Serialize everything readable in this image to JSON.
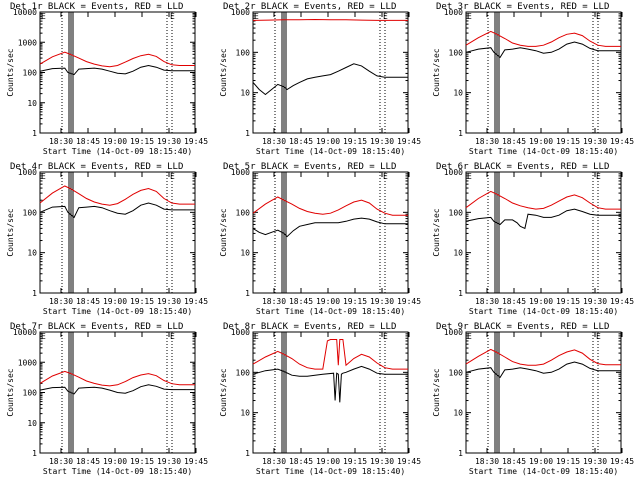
{
  "figure": {
    "background": "#ffffff",
    "black_color": "#000000",
    "red_color": "#e00000"
  },
  "chart_data": [
    {
      "type": "line",
      "title": "Det 1r BLACK = Events, RED = LLD",
      "xlabel": "Start Time (14-Oct-09 18:15:40)",
      "ylabel": "Counts/sec",
      "yscale": "log",
      "ylim": [
        1,
        10000
      ],
      "ytick_labels": [
        "10000",
        "1000",
        "100",
        "10",
        "1"
      ],
      "xtick_labels": [
        "18:30",
        "18:45",
        "19:00",
        "19:15",
        "19:30",
        "19:45"
      ],
      "xlim": [
        0,
        100
      ],
      "annotation": "E",
      "series": [
        {
          "name": "Events",
          "color": "black",
          "x": [
            0,
            8,
            16,
            18,
            22,
            25,
            30,
            35,
            40,
            45,
            50,
            55,
            60,
            65,
            70,
            75,
            80,
            85,
            90,
            95,
            100
          ],
          "y": [
            110,
            135,
            140,
            100,
            85,
            130,
            135,
            140,
            130,
            110,
            95,
            90,
            110,
            150,
            170,
            150,
            120,
            115,
            115,
            115,
            115
          ]
        },
        {
          "name": "LLD",
          "color": "red",
          "x": [
            0,
            8,
            16,
            20,
            25,
            30,
            35,
            40,
            45,
            50,
            55,
            60,
            65,
            70,
            75,
            80,
            85,
            90,
            95,
            100
          ],
          "y": [
            190,
            330,
            470,
            390,
            300,
            230,
            190,
            165,
            155,
            170,
            220,
            290,
            360,
            400,
            340,
            230,
            180,
            170,
            170,
            170
          ]
        }
      ]
    },
    {
      "type": "line",
      "title": "Det 2r BLACK = Events, RED = LLD",
      "xlabel": "Start Time (14-Oct-09 18:15:40)",
      "ylabel": "Counts/sec",
      "yscale": "log",
      "ylim": [
        1,
        1000
      ],
      "ytick_labels": [
        "1000",
        "100",
        "10",
        "1"
      ],
      "xtick_labels": [
        "18:30",
        "18:45",
        "19:00",
        "19:15",
        "19:30",
        "19:45"
      ],
      "xlim": [
        0,
        100
      ],
      "annotation": "E",
      "series": [
        {
          "name": "Events",
          "color": "black",
          "x": [
            0,
            4,
            8,
            12,
            16,
            20,
            22,
            26,
            30,
            35,
            40,
            45,
            50,
            55,
            60,
            65,
            70,
            75,
            80,
            85,
            90,
            95,
            100
          ],
          "y": [
            18,
            12,
            9,
            12,
            16,
            14,
            12,
            15,
            18,
            22,
            24,
            26,
            28,
            34,
            42,
            52,
            46,
            34,
            26,
            24,
            24,
            24,
            24
          ]
        },
        {
          "name": "LLD",
          "color": "red",
          "x": [
            0,
            10,
            20,
            30,
            40,
            50,
            60,
            70,
            80,
            90,
            100
          ],
          "y": [
            620,
            630,
            640,
            640,
            650,
            640,
            640,
            630,
            620,
            620,
            620
          ]
        }
      ]
    },
    {
      "type": "line",
      "title": "Det 3r BLACK = Events, RED = LLD",
      "xlabel": "Start Time (14-Oct-09 18:15:40)",
      "ylabel": "Counts/sec",
      "yscale": "log",
      "ylim": [
        1,
        1000
      ],
      "ytick_labels": [
        "1000",
        "100",
        "10",
        "1"
      ],
      "xtick_labels": [
        "18:30",
        "18:45",
        "19:00",
        "19:15",
        "19:30",
        "19:45"
      ],
      "xlim": [
        0,
        100
      ],
      "annotation": "E",
      "series": [
        {
          "name": "Events",
          "color": "black",
          "x": [
            0,
            8,
            16,
            18,
            22,
            25,
            30,
            35,
            40,
            45,
            50,
            55,
            60,
            65,
            70,
            75,
            80,
            85,
            90,
            95,
            100
          ],
          "y": [
            100,
            120,
            130,
            100,
            75,
            115,
            120,
            130,
            120,
            110,
            95,
            100,
            120,
            160,
            180,
            160,
            125,
            110,
            110,
            110,
            110
          ]
        },
        {
          "name": "LLD",
          "color": "red",
          "x": [
            0,
            8,
            16,
            20,
            25,
            30,
            35,
            40,
            45,
            50,
            55,
            60,
            65,
            70,
            75,
            80,
            85,
            90,
            95,
            100
          ],
          "y": [
            150,
            230,
            330,
            280,
            220,
            170,
            150,
            140,
            140,
            150,
            180,
            230,
            280,
            300,
            260,
            190,
            150,
            140,
            140,
            140
          ]
        }
      ]
    },
    {
      "type": "line",
      "title": "Det 4r BLACK = Events, RED = LLD",
      "xlabel": "Start Time (14-Oct-09 18:15:40)",
      "ylabel": "Counts/sec",
      "yscale": "log",
      "ylim": [
        1,
        1000
      ],
      "ytick_labels": [
        "1000",
        "100",
        "10",
        "1"
      ],
      "xtick_labels": [
        "18:30",
        "18:45",
        "19:00",
        "19:15",
        "19:30",
        "19:45"
      ],
      "xlim": [
        0,
        100
      ],
      "annotation": "E",
      "series": [
        {
          "name": "Events",
          "color": "black",
          "x": [
            0,
            8,
            16,
            18,
            22,
            25,
            30,
            35,
            40,
            45,
            50,
            55,
            60,
            65,
            70,
            75,
            80,
            85,
            90,
            95,
            100
          ],
          "y": [
            100,
            135,
            140,
            100,
            75,
            130,
            135,
            140,
            130,
            110,
            95,
            90,
            110,
            150,
            170,
            150,
            120,
            115,
            115,
            115,
            115
          ]
        },
        {
          "name": "LLD",
          "color": "red",
          "x": [
            0,
            8,
            16,
            20,
            25,
            30,
            35,
            40,
            45,
            50,
            55,
            60,
            65,
            70,
            75,
            80,
            85,
            90,
            95,
            100
          ],
          "y": [
            170,
            300,
            450,
            380,
            290,
            220,
            180,
            160,
            150,
            165,
            210,
            280,
            350,
            390,
            330,
            220,
            170,
            160,
            160,
            160
          ]
        }
      ]
    },
    {
      "type": "line",
      "title": "Det 5r BLACK = Events, RED = LLD",
      "xlabel": "Start Time (14-Oct-09 18:15:40)",
      "ylabel": "Counts/sec",
      "yscale": "log",
      "ylim": [
        1,
        1000
      ],
      "ytick_labels": [
        "1000",
        "100",
        "10",
        "1"
      ],
      "xtick_labels": [
        "18:30",
        "18:45",
        "19:00",
        "19:15",
        "19:30",
        "19:45"
      ],
      "xlim": [
        0,
        100
      ],
      "annotation": "E",
      "series": [
        {
          "name": "Events",
          "color": "black",
          "x": [
            0,
            4,
            8,
            12,
            16,
            20,
            22,
            26,
            30,
            35,
            40,
            45,
            50,
            55,
            60,
            65,
            70,
            75,
            80,
            85,
            90,
            95,
            100
          ],
          "y": [
            40,
            32,
            28,
            32,
            36,
            30,
            25,
            35,
            45,
            50,
            55,
            55,
            55,
            55,
            60,
            68,
            72,
            68,
            58,
            52,
            52,
            52,
            52
          ]
        },
        {
          "name": "LLD",
          "color": "red",
          "x": [
            0,
            8,
            16,
            20,
            25,
            30,
            35,
            40,
            45,
            50,
            55,
            60,
            65,
            70,
            75,
            80,
            85,
            90,
            95,
            100
          ],
          "y": [
            95,
            160,
            240,
            200,
            160,
            125,
            105,
            95,
            90,
            95,
            115,
            145,
            180,
            200,
            170,
            120,
            95,
            85,
            85,
            85
          ]
        }
      ]
    },
    {
      "type": "line",
      "title": "Det 6r BLACK = Events, RED = LLD",
      "xlabel": "Start Time (14-Oct-09 18:15:40)",
      "ylabel": "Counts/sec",
      "yscale": "log",
      "ylim": [
        1,
        1000
      ],
      "ytick_labels": [
        "1000",
        "100",
        "10",
        "1"
      ],
      "xtick_labels": [
        "18:30",
        "18:45",
        "19:00",
        "19:15",
        "19:30",
        "19:45"
      ],
      "xlim": [
        0,
        100
      ],
      "annotation": "E",
      "series": [
        {
          "name": "Events",
          "color": "black",
          "x": [
            0,
            8,
            16,
            18,
            22,
            25,
            30,
            33,
            35,
            38,
            40,
            45,
            50,
            55,
            60,
            65,
            70,
            75,
            80,
            85,
            90,
            95,
            100
          ],
          "y": [
            60,
            70,
            75,
            60,
            50,
            65,
            65,
            55,
            45,
            40,
            90,
            85,
            75,
            75,
            85,
            110,
            120,
            105,
            90,
            85,
            85,
            85,
            85
          ]
        },
        {
          "name": "LLD",
          "color": "red",
          "x": [
            0,
            8,
            16,
            20,
            25,
            30,
            35,
            40,
            45,
            50,
            55,
            60,
            65,
            70,
            75,
            80,
            85,
            90,
            95,
            100
          ],
          "y": [
            130,
            220,
            330,
            280,
            220,
            170,
            145,
            130,
            120,
            125,
            150,
            190,
            240,
            270,
            230,
            170,
            130,
            120,
            120,
            120
          ]
        }
      ]
    },
    {
      "type": "line",
      "title": "Det 7r BLACK = Events, RED = LLD",
      "xlabel": "Start Time (14-Oct-09 18:15:40)",
      "ylabel": "Counts/sec",
      "yscale": "log",
      "ylim": [
        1,
        10000
      ],
      "ytick_labels": [
        "10000",
        "1000",
        "100",
        "10",
        "1"
      ],
      "xtick_labels": [
        "18:30",
        "18:45",
        "19:00",
        "19:15",
        "19:30",
        "19:45"
      ],
      "xlim": [
        0,
        100
      ],
      "annotation": "E",
      "series": [
        {
          "name": "Events",
          "color": "black",
          "x": [
            0,
            8,
            16,
            18,
            22,
            25,
            30,
            35,
            40,
            45,
            50,
            55,
            60,
            65,
            70,
            75,
            80,
            85,
            90,
            95,
            100
          ],
          "y": [
            120,
            145,
            150,
            110,
            90,
            140,
            145,
            150,
            140,
            120,
            100,
            95,
            115,
            155,
            180,
            160,
            130,
            125,
            125,
            125,
            125
          ]
        },
        {
          "name": "LLD",
          "color": "red",
          "x": [
            0,
            8,
            16,
            20,
            25,
            30,
            35,
            40,
            45,
            50,
            55,
            60,
            65,
            70,
            75,
            80,
            85,
            90,
            95,
            100
          ],
          "y": [
            200,
            350,
            500,
            420,
            320,
            240,
            200,
            175,
            165,
            180,
            230,
            310,
            380,
            420,
            360,
            250,
            195,
            180,
            180,
            180
          ]
        }
      ]
    },
    {
      "type": "line",
      "title": "Det 8r BLACK = Events, RED = LLD",
      "xlabel": "Start Time (14-Oct-09 18:15:40)",
      "ylabel": "Counts/sec",
      "yscale": "log",
      "ylim": [
        1,
        1000
      ],
      "ytick_labels": [
        "1000",
        "100",
        "10",
        "1"
      ],
      "xtick_labels": [
        "18:30",
        "18:45",
        "19:00",
        "19:15",
        "19:30",
        "19:45"
      ],
      "xlim": [
        0,
        100
      ],
      "annotation": "E",
      "series": [
        {
          "name": "Events",
          "color": "black",
          "x": [
            0,
            8,
            16,
            20,
            25,
            30,
            35,
            40,
            45,
            52,
            53,
            54,
            55,
            56,
            57,
            58,
            60,
            65,
            70,
            75,
            80,
            85,
            90,
            95,
            100
          ],
          "y": [
            90,
            110,
            120,
            105,
            85,
            80,
            80,
            85,
            90,
            95,
            20,
            95,
            90,
            18,
            90,
            95,
            100,
            120,
            140,
            120,
            95,
            90,
            90,
            90,
            90
          ]
        },
        {
          "name": "LLD",
          "color": "red",
          "x": [
            0,
            8,
            16,
            20,
            25,
            30,
            35,
            40,
            45,
            48,
            50,
            54,
            55,
            56,
            58,
            60,
            65,
            70,
            75,
            80,
            85,
            90,
            95,
            100
          ],
          "y": [
            160,
            240,
            330,
            280,
            220,
            160,
            130,
            120,
            120,
            600,
            650,
            650,
            150,
            650,
            650,
            150,
            220,
            280,
            240,
            170,
            130,
            120,
            120,
            120
          ]
        }
      ]
    },
    {
      "type": "line",
      "title": "Det 9r BLACK = Events, RED = LLD",
      "xlabel": "Start Time (14-Oct-09 18:15:40)",
      "ylabel": "Counts/sec",
      "yscale": "log",
      "ylim": [
        1,
        1000
      ],
      "ytick_labels": [
        "1000",
        "100",
        "10",
        "1"
      ],
      "xtick_labels": [
        "18:30",
        "18:45",
        "19:00",
        "19:15",
        "19:30",
        "19:45"
      ],
      "xlim": [
        0,
        100
      ],
      "annotation": "E",
      "series": [
        {
          "name": "Events",
          "color": "black",
          "x": [
            0,
            8,
            16,
            18,
            22,
            25,
            30,
            35,
            40,
            45,
            50,
            55,
            60,
            65,
            70,
            75,
            80,
            85,
            90,
            95,
            100
          ],
          "y": [
            100,
            120,
            130,
            100,
            75,
            115,
            120,
            130,
            120,
            110,
            95,
            100,
            120,
            160,
            180,
            160,
            125,
            110,
            110,
            110,
            110
          ]
        },
        {
          "name": "LLD",
          "color": "red",
          "x": [
            0,
            8,
            16,
            20,
            25,
            30,
            35,
            40,
            45,
            50,
            55,
            60,
            65,
            70,
            75,
            80,
            85,
            90,
            95,
            100
          ],
          "y": [
            160,
            250,
            370,
            310,
            240,
            185,
            160,
            150,
            150,
            160,
            200,
            260,
            320,
            360,
            300,
            210,
            165,
            155,
            155,
            155
          ]
        }
      ]
    }
  ]
}
